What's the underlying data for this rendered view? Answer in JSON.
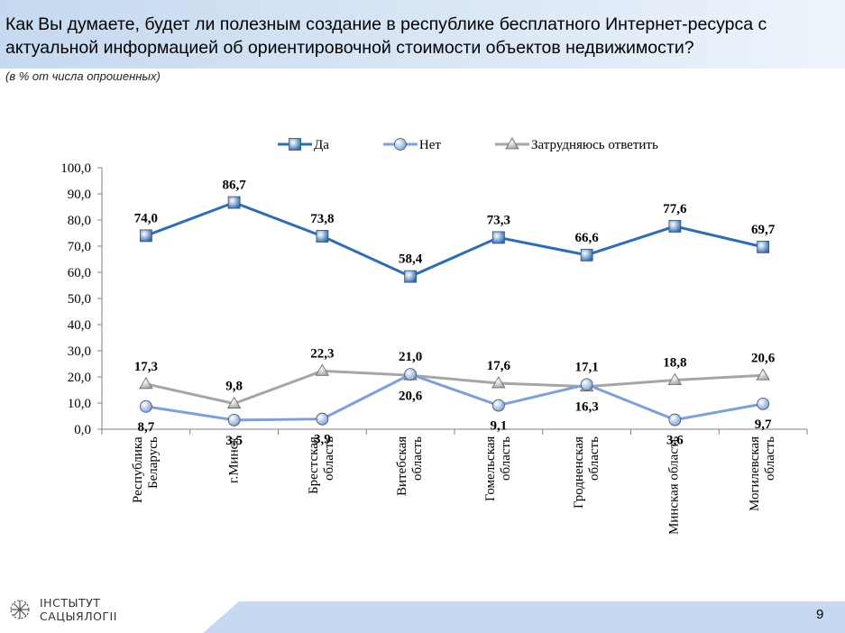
{
  "title": "Как Вы думаете, будет ли полезным создание в республике бесплатного Интернет-ресурса с актуальной информацией об ориентировочной стоимости объектов недвижимости?",
  "subtitle": "(в % от числа опрошенных)",
  "logo": [
    "ІНСТЫТУТ",
    "САЦЫЯЛОГІІ"
  ],
  "page_number": 9,
  "chart_data": {
    "type": "line",
    "categories": [
      "Республика Беларусь",
      "г.Минск",
      "Брестская область",
      "Витебская область",
      "Гомельская область",
      "Гродненская область",
      "Минская область",
      "Могилевская область"
    ],
    "series": [
      {
        "name": "Да",
        "color": "#2e6db4",
        "marker": "square",
        "values": [
          74.0,
          86.7,
          73.8,
          58.4,
          73.3,
          66.6,
          77.6,
          69.7
        ],
        "value_labels": [
          "74,0",
          "86,7",
          "73,8",
          "58,4",
          "73,3",
          "66,6",
          "77,6",
          "69,7"
        ]
      },
      {
        "name": "Нет",
        "color": "#7f9fd6",
        "marker": "circle",
        "values": [
          8.7,
          3.5,
          3.9,
          21.0,
          9.1,
          17.1,
          3.6,
          9.7
        ],
        "value_labels": [
          "8,7",
          "3,5",
          "3,9",
          "21,0",
          "9,1",
          "17,1",
          "3,6",
          "9,7"
        ]
      },
      {
        "name": "Затрудняюсь ответить",
        "color": "#a6a6a6",
        "marker": "triangle",
        "values": [
          17.3,
          9.8,
          22.3,
          20.6,
          17.6,
          16.3,
          18.8,
          20.6
        ],
        "value_labels": [
          "17,3",
          "9,8",
          "22,3",
          "20,6",
          "17,6",
          "16,3",
          "18,8",
          "20,6"
        ]
      }
    ],
    "ylim": [
      0,
      100
    ],
    "yticks": [
      {
        "value": 0,
        "label": "0,0"
      },
      {
        "value": 10,
        "label": "10,0"
      },
      {
        "value": 20,
        "label": "20,0"
      },
      {
        "value": 30,
        "label": "30,0"
      },
      {
        "value": 40,
        "label": "40,0"
      },
      {
        "value": 50,
        "label": "50,0"
      },
      {
        "value": 60,
        "label": "60,0"
      },
      {
        "value": 70,
        "label": "70,0"
      },
      {
        "value": 80,
        "label": "80,0"
      },
      {
        "value": 90,
        "label": "90,0"
      },
      {
        "value": 100,
        "label": "100,0"
      }
    ],
    "legend": "top",
    "grid": false
  }
}
